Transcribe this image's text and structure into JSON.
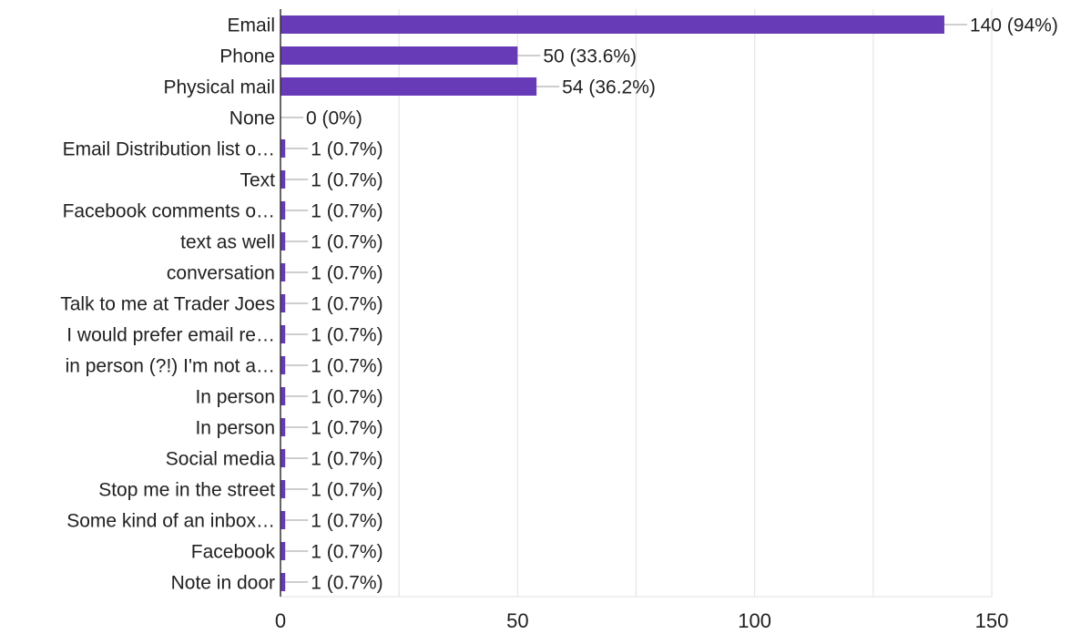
{
  "chart_data": {
    "type": "bar",
    "orientation": "horizontal",
    "bar_color": "#673ab7",
    "grid": true,
    "xlim": [
      0,
      150
    ],
    "x_ticks": [
      0,
      50,
      100,
      150
    ],
    "categories": [
      "Email",
      "Phone",
      "Physical mail",
      "None",
      "Email Distribution list o…",
      "Text",
      "Facebook comments o…",
      "text as well",
      "conversation",
      "Talk to me at Trader Joes",
      "I would prefer email re…",
      "in person (?!) I'm not a…",
      "In person",
      "In person",
      "Social media",
      "Stop me in the street",
      "Some kind of an inbox…",
      "Facebook",
      "Note in door"
    ],
    "values": [
      140,
      50,
      54,
      0,
      1,
      1,
      1,
      1,
      1,
      1,
      1,
      1,
      1,
      1,
      1,
      1,
      1,
      1,
      1
    ],
    "value_labels": [
      "140 (94%)",
      "50 (33.6%)",
      "54 (36.2%)",
      "0 (0%)",
      "1 (0.7%)",
      "1 (0.7%)",
      "1 (0.7%)",
      "1 (0.7%)",
      "1 (0.7%)",
      "1 (0.7%)",
      "1 (0.7%)",
      "1 (0.7%)",
      "1 (0.7%)",
      "1 (0.7%)",
      "1 (0.7%)",
      "1 (0.7%)",
      "1 (0.7%)",
      "1 (0.7%)",
      "1 (0.7%)"
    ]
  }
}
